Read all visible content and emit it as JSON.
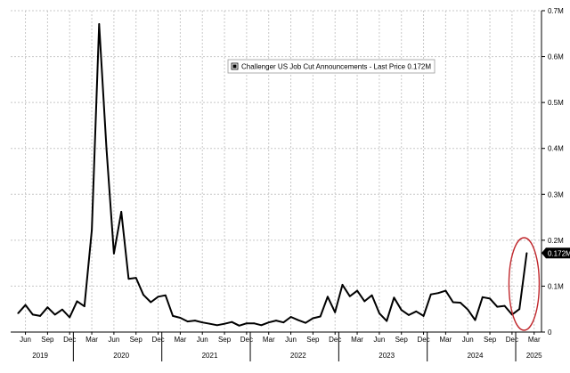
{
  "chart_data": {
    "type": "line",
    "legend": {
      "label": "Challenger US Job Cut Announcements - Last Price",
      "last_price": "0.172M",
      "placement": "top-center"
    },
    "last_value_badge": "0.172M",
    "series": [
      {
        "name": "Challenger US Job Cut Announcements",
        "color": "#000000",
        "values": [
          {
            "x": "2019-05",
            "y": 0.041
          },
          {
            "x": "2019-06",
            "y": 0.059
          },
          {
            "x": "2019-07",
            "y": 0.038
          },
          {
            "x": "2019-08",
            "y": 0.035
          },
          {
            "x": "2019-09",
            "y": 0.054
          },
          {
            "x": "2019-10",
            "y": 0.038
          },
          {
            "x": "2019-11",
            "y": 0.049
          },
          {
            "x": "2019-12",
            "y": 0.032
          },
          {
            "x": "2020-01",
            "y": 0.067
          },
          {
            "x": "2020-02",
            "y": 0.056
          },
          {
            "x": "2020-03",
            "y": 0.222
          },
          {
            "x": "2020-04",
            "y": 0.671
          },
          {
            "x": "2020-05",
            "y": 0.398
          },
          {
            "x": "2020-06",
            "y": 0.171
          },
          {
            "x": "2020-07",
            "y": 0.262
          },
          {
            "x": "2020-08",
            "y": 0.116
          },
          {
            "x": "2020-09",
            "y": 0.118
          },
          {
            "x": "2020-10",
            "y": 0.081
          },
          {
            "x": "2020-11",
            "y": 0.065
          },
          {
            "x": "2020-12",
            "y": 0.077
          },
          {
            "x": "2021-01",
            "y": 0.08
          },
          {
            "x": "2021-02",
            "y": 0.035
          },
          {
            "x": "2021-03",
            "y": 0.031
          },
          {
            "x": "2021-04",
            "y": 0.023
          },
          {
            "x": "2021-05",
            "y": 0.025
          },
          {
            "x": "2021-06",
            "y": 0.021
          },
          {
            "x": "2021-07",
            "y": 0.018
          },
          {
            "x": "2021-08",
            "y": 0.015
          },
          {
            "x": "2021-09",
            "y": 0.018
          },
          {
            "x": "2021-10",
            "y": 0.022
          },
          {
            "x": "2021-11",
            "y": 0.014
          },
          {
            "x": "2021-12",
            "y": 0.019
          },
          {
            "x": "2022-01",
            "y": 0.019
          },
          {
            "x": "2022-02",
            "y": 0.015
          },
          {
            "x": "2022-03",
            "y": 0.021
          },
          {
            "x": "2022-04",
            "y": 0.025
          },
          {
            "x": "2022-05",
            "y": 0.021
          },
          {
            "x": "2022-06",
            "y": 0.033
          },
          {
            "x": "2022-07",
            "y": 0.026
          },
          {
            "x": "2022-08",
            "y": 0.02
          },
          {
            "x": "2022-09",
            "y": 0.03
          },
          {
            "x": "2022-10",
            "y": 0.034
          },
          {
            "x": "2022-11",
            "y": 0.077
          },
          {
            "x": "2022-12",
            "y": 0.043
          },
          {
            "x": "2023-01",
            "y": 0.103
          },
          {
            "x": "2023-02",
            "y": 0.078
          },
          {
            "x": "2023-03",
            "y": 0.09
          },
          {
            "x": "2023-04",
            "y": 0.067
          },
          {
            "x": "2023-05",
            "y": 0.08
          },
          {
            "x": "2023-06",
            "y": 0.041
          },
          {
            "x": "2023-07",
            "y": 0.024
          },
          {
            "x": "2023-08",
            "y": 0.075
          },
          {
            "x": "2023-09",
            "y": 0.048
          },
          {
            "x": "2023-10",
            "y": 0.037
          },
          {
            "x": "2023-11",
            "y": 0.045
          },
          {
            "x": "2023-12",
            "y": 0.035
          },
          {
            "x": "2024-01",
            "y": 0.082
          },
          {
            "x": "2024-02",
            "y": 0.085
          },
          {
            "x": "2024-03",
            "y": 0.09
          },
          {
            "x": "2024-04",
            "y": 0.065
          },
          {
            "x": "2024-05",
            "y": 0.064
          },
          {
            "x": "2024-06",
            "y": 0.049
          },
          {
            "x": "2024-07",
            "y": 0.026
          },
          {
            "x": "2024-08",
            "y": 0.076
          },
          {
            "x": "2024-09",
            "y": 0.073
          },
          {
            "x": "2024-10",
            "y": 0.055
          },
          {
            "x": "2024-11",
            "y": 0.057
          },
          {
            "x": "2024-12",
            "y": 0.038
          },
          {
            "x": "2025-01",
            "y": 0.05
          },
          {
            "x": "2025-02",
            "y": 0.172
          }
        ]
      }
    ],
    "x_range": [
      "2019-04",
      "2025-04"
    ],
    "month_ticks": [
      {
        "label": "Jun",
        "x": "2019-06"
      },
      {
        "label": "Sep",
        "x": "2019-09"
      },
      {
        "label": "Dec",
        "x": "2019-12"
      },
      {
        "label": "Mar",
        "x": "2020-03"
      },
      {
        "label": "Jun",
        "x": "2020-06"
      },
      {
        "label": "Sep",
        "x": "2020-09"
      },
      {
        "label": "Dec",
        "x": "2020-12"
      },
      {
        "label": "Mar",
        "x": "2021-03"
      },
      {
        "label": "Jun",
        "x": "2021-06"
      },
      {
        "label": "Sep",
        "x": "2021-09"
      },
      {
        "label": "Dec",
        "x": "2021-12"
      },
      {
        "label": "Mar",
        "x": "2022-03"
      },
      {
        "label": "Jun",
        "x": "2022-06"
      },
      {
        "label": "Sep",
        "x": "2022-09"
      },
      {
        "label": "Dec",
        "x": "2022-12"
      },
      {
        "label": "Mar",
        "x": "2023-03"
      },
      {
        "label": "Jun",
        "x": "2023-06"
      },
      {
        "label": "Sep",
        "x": "2023-09"
      },
      {
        "label": "Dec",
        "x": "2023-12"
      },
      {
        "label": "Mar",
        "x": "2024-03"
      },
      {
        "label": "Jun",
        "x": "2024-06"
      },
      {
        "label": "Sep",
        "x": "2024-09"
      },
      {
        "label": "Dec",
        "x": "2024-12"
      },
      {
        "label": "Mar",
        "x": "2025-03"
      }
    ],
    "year_labels": [
      {
        "label": "2019",
        "x": "2019-08"
      },
      {
        "label": "2020",
        "x": "2020-07"
      },
      {
        "label": "2021",
        "x": "2021-07"
      },
      {
        "label": "2022",
        "x": "2022-07"
      },
      {
        "label": "2023",
        "x": "2023-07"
      },
      {
        "label": "2024",
        "x": "2024-07"
      },
      {
        "label": "2025",
        "x": "2025-03"
      }
    ],
    "year_separators": [
      "2020-01",
      "2021-01",
      "2022-01",
      "2023-01",
      "2024-01",
      "2025-01"
    ],
    "y_axis": {
      "position": "right",
      "ylim": [
        0,
        0.7
      ],
      "ticks": [
        {
          "value": 0,
          "label": "0"
        },
        {
          "value": 0.1,
          "label": "0.1M"
        },
        {
          "value": 0.2,
          "label": "0.2M"
        },
        {
          "value": 0.3,
          "label": "0.3M"
        },
        {
          "value": 0.4,
          "label": "0.4M"
        },
        {
          "value": 0.5,
          "label": "0.5M"
        },
        {
          "value": 0.6,
          "label": "0.6M"
        },
        {
          "value": 0.7,
          "label": "0.7M"
        }
      ]
    },
    "grid": true,
    "annotation": {
      "type": "ellipse",
      "color": "#c0282d",
      "around": "latest spike (Feb 2025)"
    }
  }
}
